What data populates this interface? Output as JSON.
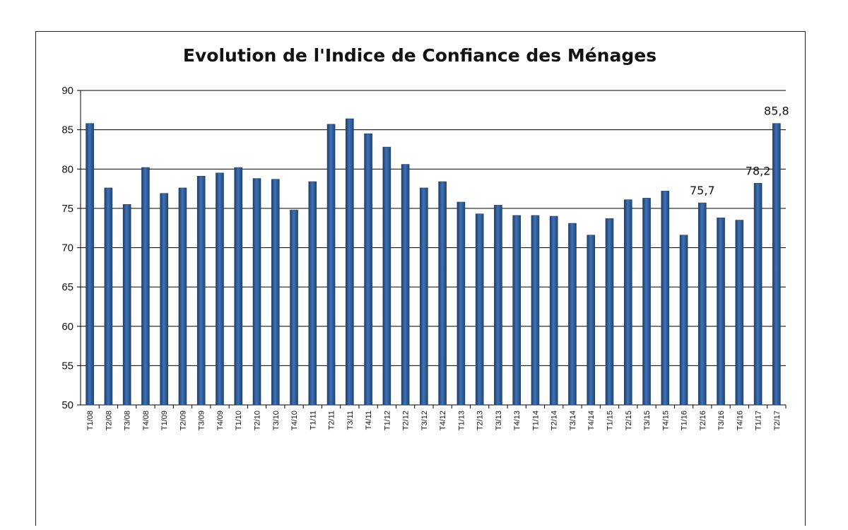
{
  "chart_data": {
    "type": "bar",
    "title": "Evolution de l'Indice de Confiance des Ménages",
    "xlabel": "",
    "ylabel": "",
    "ylim": [
      50,
      90
    ],
    "yticks": [
      50,
      55,
      60,
      65,
      70,
      75,
      80,
      85,
      90
    ],
    "grid": true,
    "legend": "none",
    "bar_color": "#2f5f9e",
    "categories": [
      "T1/08",
      "T2/08",
      "T3/08",
      "T4/08",
      "T1/09",
      "T2/09",
      "T3/09",
      "T4/09",
      "T1/10",
      "T2/10",
      "T3/10",
      "T4/10",
      "T1/11",
      "T2/11",
      "T3/11",
      "T4/11",
      "T1/12",
      "T2/12",
      "T3/12",
      "T4/12",
      "T1/13",
      "T2/13",
      "T3/13",
      "T4/13",
      "T1/14",
      "T2/14",
      "T3/14",
      "T4/14",
      "T1/15",
      "T2/15",
      "T3/15",
      "T4/15",
      "T1/16",
      "T2/16",
      "T3/16",
      "T4/16",
      "T1/17",
      "T2/17"
    ],
    "values": [
      85.8,
      77.6,
      75.5,
      80.2,
      76.9,
      77.6,
      79.1,
      79.5,
      80.2,
      78.8,
      78.7,
      74.8,
      78.4,
      85.7,
      86.4,
      84.5,
      82.8,
      80.6,
      77.6,
      78.4,
      75.8,
      74.3,
      75.4,
      74.1,
      74.1,
      74.0,
      73.1,
      71.6,
      73.7,
      76.1,
      76.3,
      77.2,
      71.6,
      75.7,
      73.8,
      73.5,
      78.2,
      85.8
    ],
    "data_labels": [
      {
        "index": 33,
        "text": "75,7"
      },
      {
        "index": 36,
        "text": "78,2"
      },
      {
        "index": 37,
        "text": "85,8"
      }
    ]
  }
}
